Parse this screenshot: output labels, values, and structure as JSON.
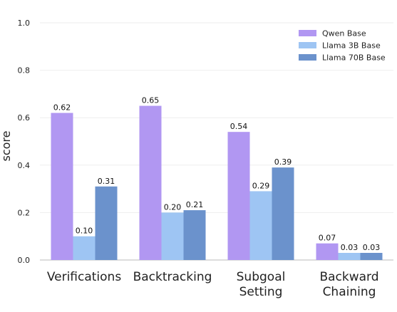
{
  "chart_data": {
    "type": "bar",
    "categories": [
      "Verifications",
      "Backtracking",
      "Subgoal\nSetting",
      "Backward\nChaining"
    ],
    "series": [
      {
        "name": "Qwen Base",
        "values": [
          0.62,
          0.65,
          0.54,
          0.07
        ],
        "labels": [
          "0.62",
          "0.65",
          "0.54",
          "0.07"
        ],
        "color": "#b197f2"
      },
      {
        "name": "Llama 3B Base",
        "values": [
          0.1,
          0.2,
          0.29,
          0.03
        ],
        "labels": [
          "0.10",
          "0.20",
          "0.29",
          "0.03"
        ],
        "color": "#9ec5f3"
      },
      {
        "name": "Llama 70B Base",
        "values": [
          0.31,
          0.21,
          0.39,
          0.03
        ],
        "labels": [
          "0.31",
          "0.21",
          "0.39",
          "0.03"
        ],
        "color": "#6b92cc"
      }
    ],
    "title": "",
    "xlabel": "",
    "ylabel": "score",
    "ylim": [
      0,
      1.0
    ],
    "yticks": [
      "0.0",
      "0.2",
      "0.4",
      "0.6",
      "0.8",
      "1.0"
    ],
    "grid": true,
    "legend_position": "top-right"
  }
}
